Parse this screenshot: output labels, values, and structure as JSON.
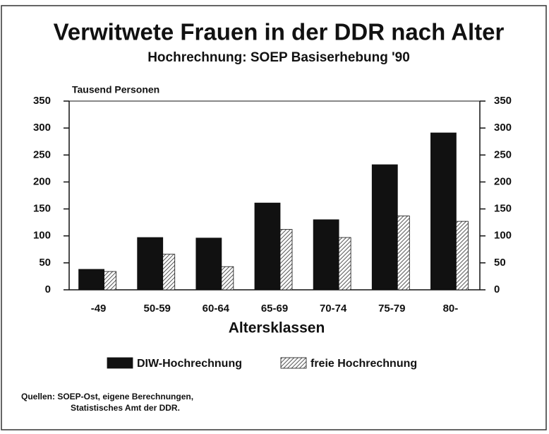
{
  "chart_data": {
    "type": "bar",
    "title": "Verwitwete Frauen in der DDR nach Alter",
    "subtitle": "Hochrechnung: SOEP Basiserhebung '90",
    "y_label": "Tausend Personen",
    "x_label": "Altersklassen",
    "categories": [
      "-49",
      "50-59",
      "60-64",
      "65-69",
      "70-74",
      "75-79",
      "80-"
    ],
    "series": [
      {
        "name": "DIW-Hochrechnung",
        "color": "#111111",
        "fill": "solid",
        "values": [
          38,
          97,
          96,
          161,
          130,
          232,
          291
        ]
      },
      {
        "name": "freie Hochrechnung",
        "color": "#555555",
        "fill": "hatch",
        "values": [
          34,
          66,
          43,
          112,
          97,
          137,
          127
        ]
      }
    ],
    "ylim": [
      0,
      350
    ],
    "yticks": [
      0,
      50,
      100,
      150,
      200,
      250,
      300,
      350
    ],
    "y2lim": [
      0,
      350
    ],
    "y2ticks": [
      0,
      50,
      100,
      150,
      200,
      250,
      300,
      350
    ],
    "legend": "bottom",
    "source": [
      "Quellen: SOEP-Ost, eigene Berechnungen,",
      "Statistisches Amt der DDR."
    ]
  }
}
